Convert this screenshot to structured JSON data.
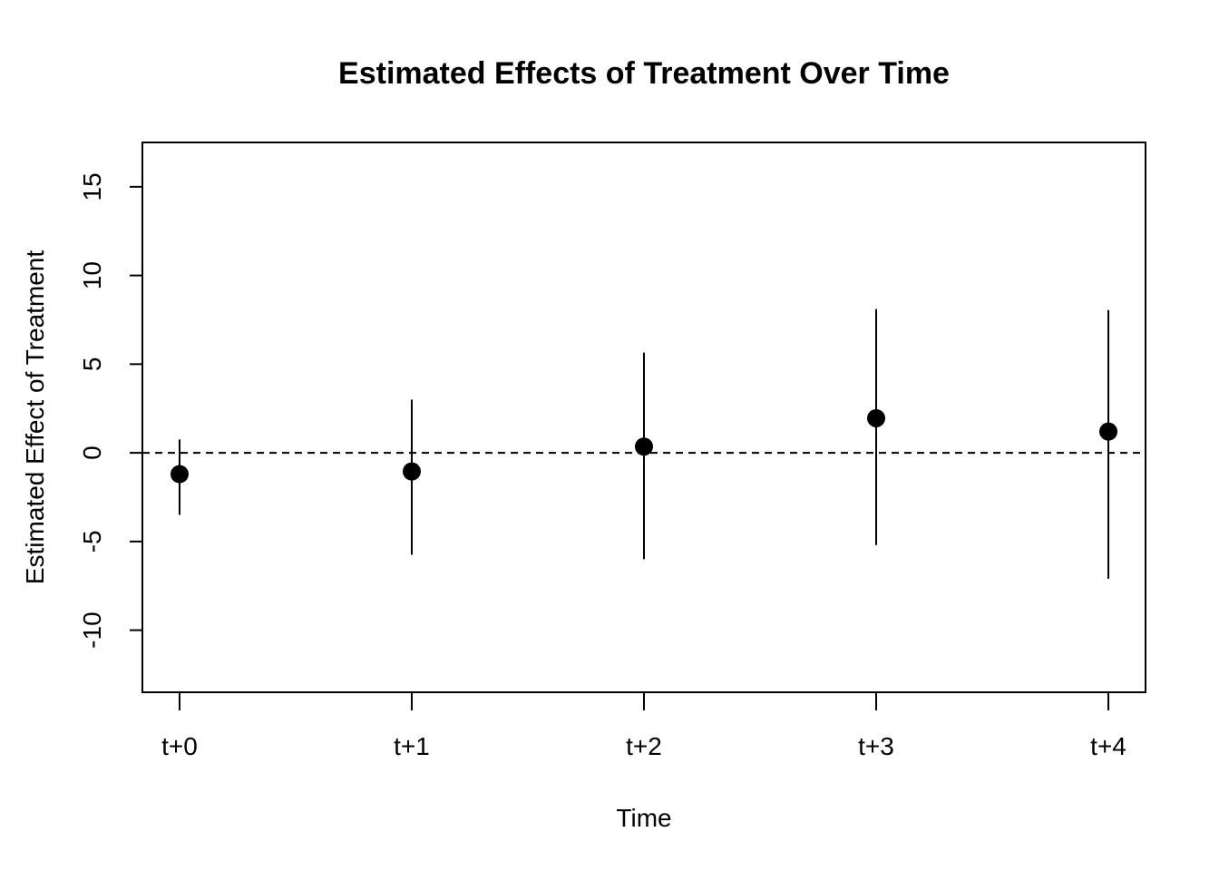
{
  "chart_data": {
    "type": "scatter",
    "title": "Estimated Effects of Treatment Over Time",
    "xlabel": "Time",
    "ylabel": "Estimated Effect of Treatment",
    "categories": [
      "t+0",
      "t+1",
      "t+2",
      "t+3",
      "t+4"
    ],
    "x_ticks": [
      "t+0",
      "t+1",
      "t+2",
      "t+3",
      "t+4"
    ],
    "y_ticks": [
      -10,
      -5,
      0,
      5,
      10,
      15
    ],
    "ylim": [
      -13.5,
      17.5
    ],
    "xlim": [
      -0.16,
      4.16
    ],
    "reference_line": {
      "y": 0,
      "style": "dashed"
    },
    "grid": false,
    "series": [
      {
        "estimates": [
          -1.2,
          -1.05,
          0.35,
          1.95,
          1.2
        ],
        "lower": [
          -3.5,
          -5.75,
          -6.0,
          -5.2,
          -7.1
        ],
        "upper": [
          0.75,
          3.0,
          5.65,
          8.1,
          8.05
        ]
      }
    ],
    "colors": {
      "points": "#000000",
      "lines": "#000000",
      "frame": "#000000"
    }
  }
}
